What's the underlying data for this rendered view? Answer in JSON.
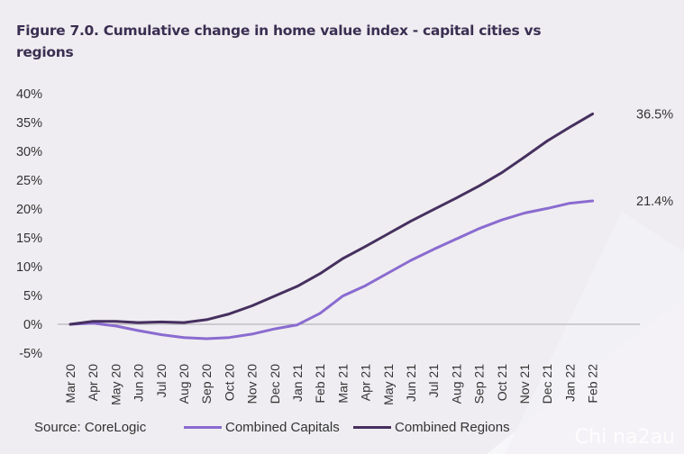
{
  "title": "Figure 7.0. Cumulative change in home value index - capital cities vs regions",
  "source": "Source: CoreLogic",
  "watermark": "Chi na2au",
  "chart_data": {
    "type": "line",
    "title": "Figure 7.0. Cumulative change in home value index - capital cities vs regions",
    "xlabel": "",
    "ylabel": "",
    "ylim": [
      -5,
      40
    ],
    "yticks": [
      "-5%",
      "0%",
      "5%",
      "10%",
      "15%",
      "20%",
      "25%",
      "30%",
      "35%",
      "40%"
    ],
    "ytick_values": [
      -5,
      0,
      5,
      10,
      15,
      20,
      25,
      30,
      35,
      40
    ],
    "grid": false,
    "legend": "bottom",
    "categories": [
      "Mar 20",
      "Apr 20",
      "May 20",
      "Jun 20",
      "Jul 20",
      "Aug 20",
      "Sep 20",
      "Oct 20",
      "Nov 20",
      "Dec 20",
      "Jan 21",
      "Feb 21",
      "Mar 21",
      "Apr 21",
      "May 21",
      "Jun 21",
      "Jul 21",
      "Aug 21",
      "Sep 21",
      "Oct 21",
      "Nov 21",
      "Dec 21",
      "Jan 22",
      "Feb 22"
    ],
    "series": [
      {
        "name": "Combined Capitals",
        "color": "#8a6bd0",
        "values": [
          0,
          0.2,
          -0.3,
          -1.1,
          -1.8,
          -2.3,
          -2.5,
          -2.3,
          -1.7,
          -0.8,
          -0.1,
          1.9,
          4.9,
          6.7,
          8.9,
          11.1,
          13.0,
          14.8,
          16.6,
          18.1,
          19.3,
          20.1,
          21.0,
          21.4
        ],
        "end_label": "21.4%"
      },
      {
        "name": "Combined Regions",
        "color": "#46305f",
        "values": [
          0,
          0.5,
          0.5,
          0.3,
          0.4,
          0.3,
          0.8,
          1.8,
          3.2,
          4.9,
          6.6,
          8.8,
          11.4,
          13.5,
          15.7,
          17.9,
          19.9,
          21.9,
          24.0,
          26.3,
          29.0,
          31.8,
          34.2,
          36.5
        ],
        "end_label": "36.5%"
      }
    ]
  }
}
